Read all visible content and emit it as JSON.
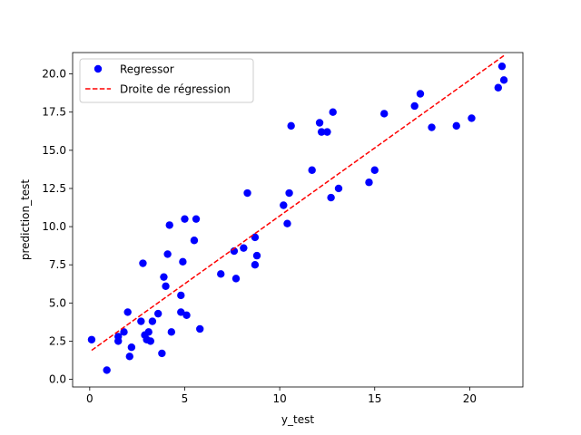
{
  "chart_data": {
    "type": "scatter",
    "xlabel": "y_test",
    "ylabel": "prediction_test",
    "xlim": [
      -0.9,
      22.8
    ],
    "ylim": [
      -0.5,
      21.4
    ],
    "x_ticks": [
      0,
      5,
      10,
      15,
      20
    ],
    "y_ticks": [
      0.0,
      2.5,
      5.0,
      7.5,
      10.0,
      12.5,
      15.0,
      17.5,
      20.0
    ],
    "x_tick_labels": [
      "0",
      "5",
      "10",
      "15",
      "20"
    ],
    "y_tick_labels": [
      "0.0",
      "2.5",
      "5.0",
      "7.5",
      "10.0",
      "12.5",
      "15.0",
      "17.5",
      "20.0"
    ],
    "grid": false,
    "legend": {
      "placement": "top-left",
      "entries": [
        "Regressor",
        "Droite de régression"
      ]
    },
    "series": [
      {
        "name": "Regressor",
        "kind": "points",
        "color": "#0000ff",
        "x": [
          0.1,
          0.9,
          1.5,
          1.5,
          1.8,
          2.0,
          2.1,
          2.2,
          2.7,
          2.8,
          2.9,
          3.0,
          3.1,
          3.2,
          3.3,
          3.6,
          3.8,
          3.9,
          4.0,
          4.1,
          4.2,
          4.3,
          4.8,
          4.8,
          4.9,
          5.0,
          5.1,
          5.5,
          5.6,
          5.8,
          6.9,
          7.6,
          7.7,
          8.1,
          8.3,
          8.7,
          8.7,
          8.8,
          10.2,
          10.4,
          10.5,
          10.6,
          11.7,
          12.1,
          12.2,
          12.5,
          12.7,
          12.8,
          13.1,
          14.7,
          15.0,
          15.5,
          17.1,
          17.4,
          18.0,
          19.3,
          20.1,
          21.5,
          21.7,
          21.8
        ],
        "y": [
          2.6,
          0.6,
          2.5,
          2.8,
          3.1,
          4.4,
          1.5,
          2.1,
          3.8,
          7.6,
          2.9,
          2.6,
          3.1,
          2.5,
          3.8,
          4.3,
          1.7,
          6.7,
          6.1,
          8.2,
          10.1,
          3.1,
          4.4,
          5.5,
          7.7,
          10.5,
          4.2,
          9.1,
          10.5,
          3.3,
          6.9,
          8.4,
          6.6,
          8.6,
          12.2,
          9.3,
          7.5,
          8.1,
          11.4,
          10.2,
          12.2,
          16.6,
          13.7,
          16.8,
          16.2,
          16.2,
          11.9,
          17.5,
          12.5,
          12.9,
          13.7,
          17.4,
          17.9,
          18.7,
          16.5,
          16.6,
          17.1,
          19.1,
          20.5,
          19.6
        ]
      },
      {
        "name": "Droite de régression",
        "kind": "line",
        "style": "dashed",
        "color": "#ff0000",
        "x": [
          0.1,
          21.8
        ],
        "y": [
          1.9,
          21.2
        ]
      }
    ]
  }
}
